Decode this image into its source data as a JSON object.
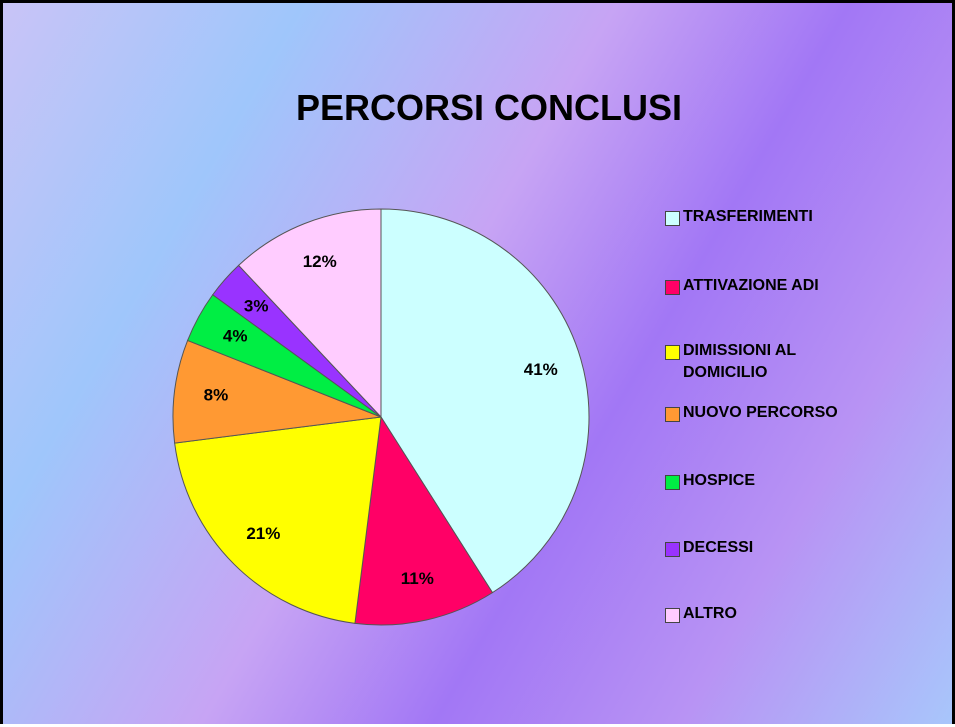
{
  "chart_data": {
    "type": "pie",
    "title": "PERCORSI CONCLUSI",
    "categories": [
      "TRASFERIMENTI",
      "ATTIVAZIONE ADI",
      "DIMISSIONI AL DOMICILIO",
      "NUOVO PERCORSO",
      "HOSPICE",
      "DECESSI",
      "ALTRO"
    ],
    "values": [
      41,
      11,
      21,
      8,
      4,
      3,
      12
    ],
    "value_labels": [
      "41%",
      "11%",
      "21%",
      "8%",
      "4%",
      "3%",
      "12%"
    ],
    "colors": [
      "#ccffff",
      "#ff0066",
      "#ffff00",
      "#ff9933",
      "#00ee44",
      "#9933ff",
      "#ffccff"
    ],
    "legend": "right"
  }
}
